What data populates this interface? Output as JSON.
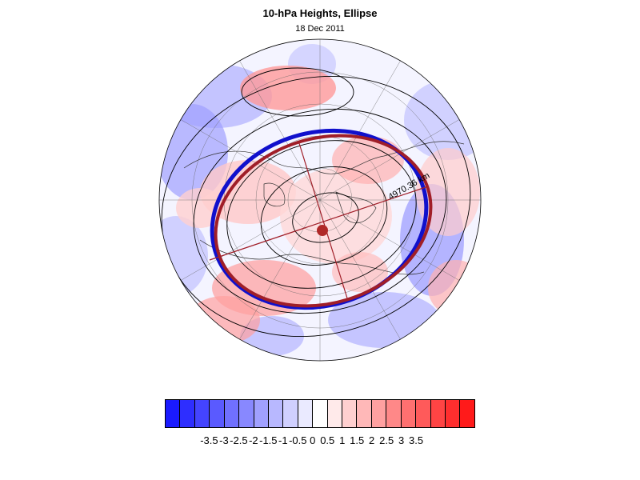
{
  "title": "10-hPa Heights, Ellipse",
  "subtitle": "18 Dec 2011",
  "ellipse_label": "4970.36 km",
  "colors": {
    "observed_edge": "#1010cc",
    "ellipse_fit": "#a01e28",
    "center_marker": "#b02828",
    "contour": "#000000"
  },
  "colorbar": {
    "colors": [
      "#1a1aff",
      "#2e2eff",
      "#4444ff",
      "#5a5aff",
      "#7070ff",
      "#8888ff",
      "#a0a0ff",
      "#b8b8ff",
      "#d0d0ff",
      "#eaeaff",
      "#ffffff",
      "#ffeaea",
      "#ffd0d0",
      "#ffb8b8",
      "#ffa0a0",
      "#ff8888",
      "#ff7070",
      "#ff5a5a",
      "#ff4444",
      "#ff2e2e",
      "#ff1a1a"
    ],
    "labels": [
      "-3.5",
      "-3",
      "-2.5",
      "-2",
      "-1.5",
      "-1",
      "-0.5",
      "0",
      "0.5",
      "1",
      "1.5",
      "2",
      "2.5",
      "3",
      "3.5"
    ]
  }
}
